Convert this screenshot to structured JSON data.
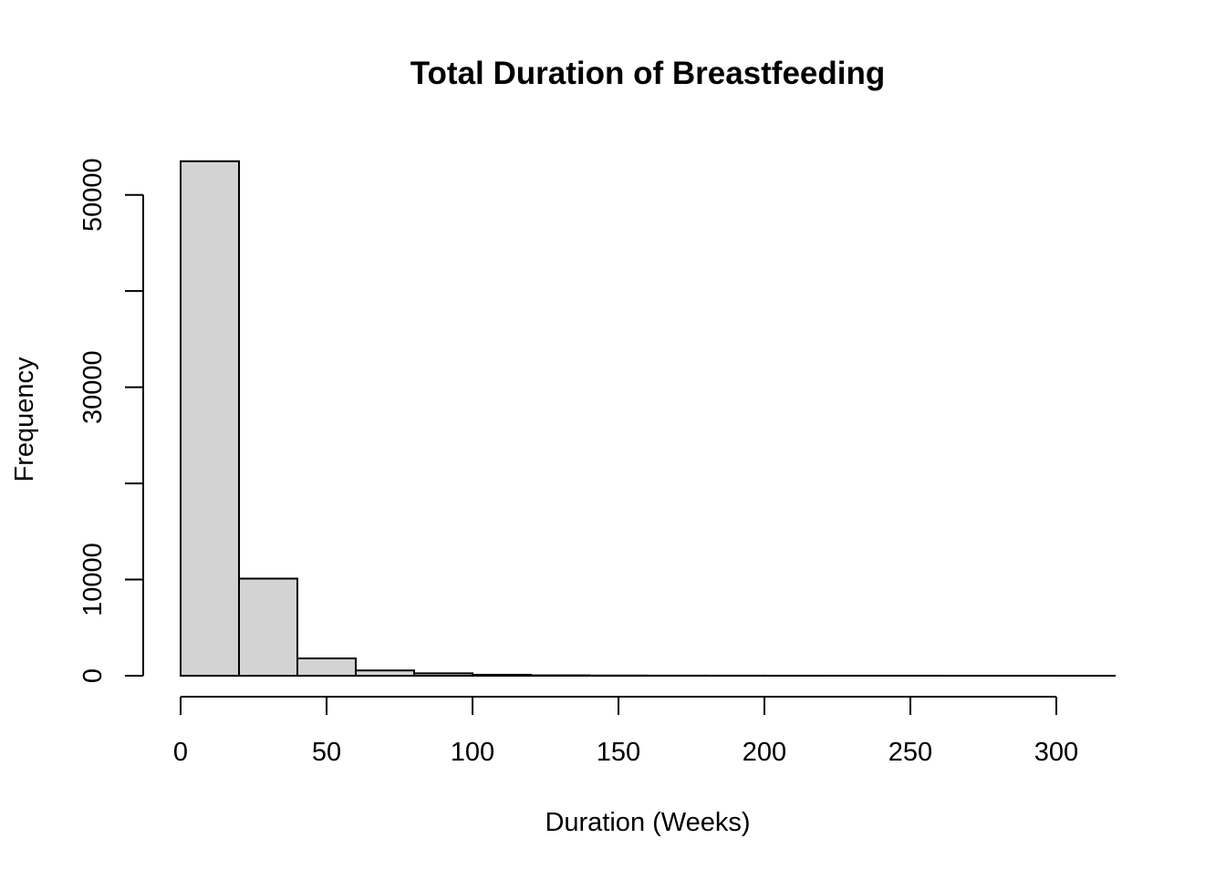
{
  "chart_data": {
    "type": "bar",
    "subtype": "histogram",
    "title": "Total Duration of Breastfeeding",
    "xlabel": "Duration (Weeks)",
    "ylabel": "Frequency",
    "bin_width": 20,
    "bins": [
      {
        "start": 0,
        "end": 20,
        "count": 53500
      },
      {
        "start": 20,
        "end": 40,
        "count": 10100
      },
      {
        "start": 40,
        "end": 60,
        "count": 1800
      },
      {
        "start": 60,
        "end": 80,
        "count": 550
      },
      {
        "start": 80,
        "end": 100,
        "count": 250
      },
      {
        "start": 100,
        "end": 120,
        "count": 100
      },
      {
        "start": 120,
        "end": 140,
        "count": 40
      },
      {
        "start": 140,
        "end": 160,
        "count": 20
      },
      {
        "start": 160,
        "end": 180,
        "count": 10
      },
      {
        "start": 180,
        "end": 200,
        "count": 8
      },
      {
        "start": 200,
        "end": 220,
        "count": 5
      },
      {
        "start": 220,
        "end": 240,
        "count": 4
      },
      {
        "start": 240,
        "end": 260,
        "count": 3
      },
      {
        "start": 260,
        "end": 280,
        "count": 2
      },
      {
        "start": 280,
        "end": 300,
        "count": 2
      },
      {
        "start": 300,
        "end": 320,
        "count": 1
      }
    ],
    "xlim": [
      0,
      320
    ],
    "ylim": [
      0,
      55000
    ],
    "x_ticks": [
      0,
      50,
      100,
      150,
      200,
      250,
      300
    ],
    "x_tick_labels": [
      "0",
      "50",
      "100",
      "150",
      "200",
      "250",
      "300"
    ],
    "y_ticks": [
      0,
      10000,
      20000,
      30000,
      40000,
      50000
    ],
    "y_tick_labels": [
      "0",
      "10000",
      "",
      "30000",
      "",
      "50000"
    ],
    "grid": false,
    "legend": "none",
    "colors": {
      "bar_fill": "#d3d3d3",
      "bar_stroke": "#000000",
      "axis": "#000000"
    }
  }
}
